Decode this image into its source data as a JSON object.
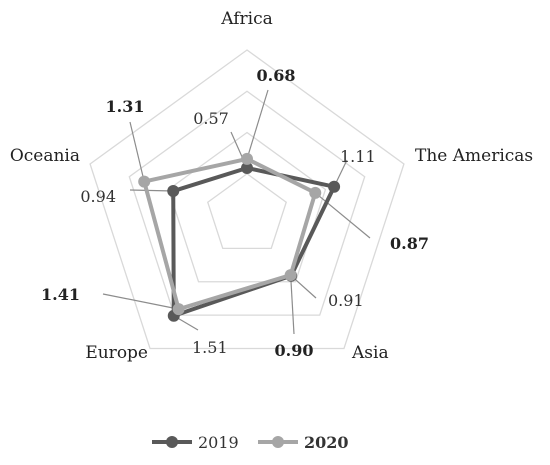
{
  "chart_data": {
    "type": "radar",
    "categories": [
      "Africa",
      "The Americas",
      "Asia",
      "Europe",
      "Oceania"
    ],
    "rlim": [
      0,
      2
    ],
    "grid": true,
    "series": [
      {
        "name": "2019",
        "values": [
          0.57,
          1.11,
          0.91,
          1.51,
          0.94
        ],
        "color": "#595959",
        "label_bold": false
      },
      {
        "name": "2020",
        "values": [
          0.68,
          0.87,
          0.9,
          1.41,
          1.31
        ],
        "color": "#a6a6a6",
        "label_bold": true
      }
    ],
    "data_labels": {
      "2019": [
        "0.57",
        "1.11",
        "0.91",
        "1.51",
        "0.94"
      ],
      "2020": [
        "0.68",
        "0.87",
        "0.90",
        "1.41",
        "1.31"
      ]
    },
    "legend": {
      "placement": "bottom",
      "entries": [
        "2019",
        "2020"
      ]
    }
  }
}
